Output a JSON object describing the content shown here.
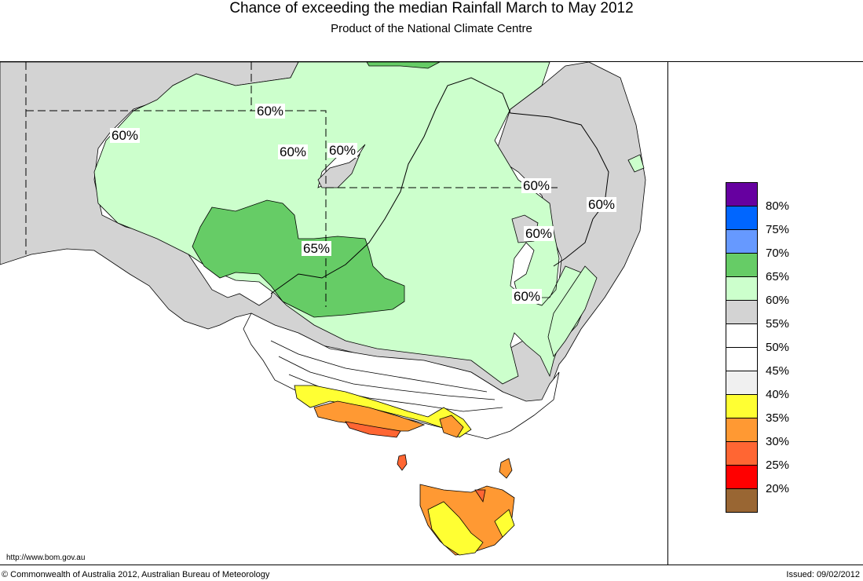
{
  "header": {
    "title": "Chance of exceeding the median Rainfall March to May 2012",
    "subtitle": "Product of the National Climate Centre"
  },
  "map_labels": [
    "60%",
    "60%",
    "60%",
    "60%",
    "60%",
    "60%",
    "60%",
    "65%",
    "60%"
  ],
  "legend": [
    {
      "label": "80%",
      "color": "#6600a0"
    },
    {
      "label": "75%",
      "color": "#0066ff"
    },
    {
      "label": "70%",
      "color": "#6699ff"
    },
    {
      "label": "65%",
      "color": "#66cc66"
    },
    {
      "label": "60%",
      "color": "#ccffcc"
    },
    {
      "label": "55%",
      "color": "#d3d3d3"
    },
    {
      "label": "50%",
      "color": "#ffffff"
    },
    {
      "label": "45%",
      "color": "#ffffff"
    },
    {
      "label": "40%",
      "color": "#f0f0f0"
    },
    {
      "label": "35%",
      "color": "#ffff33"
    },
    {
      "label": "30%",
      "color": "#ff9933"
    },
    {
      "label": "25%",
      "color": "#ff6633"
    },
    {
      "label": "20%",
      "color": "#ff0000"
    },
    {
      "label_end": "",
      "color": "#996633"
    }
  ],
  "footer": {
    "url": "http://www.bom.gov.au",
    "copyright": "© Commonwealth of Australia 2012, Australian Bureau of Meteorology",
    "issued": "Issued: 09/02/2012"
  }
}
